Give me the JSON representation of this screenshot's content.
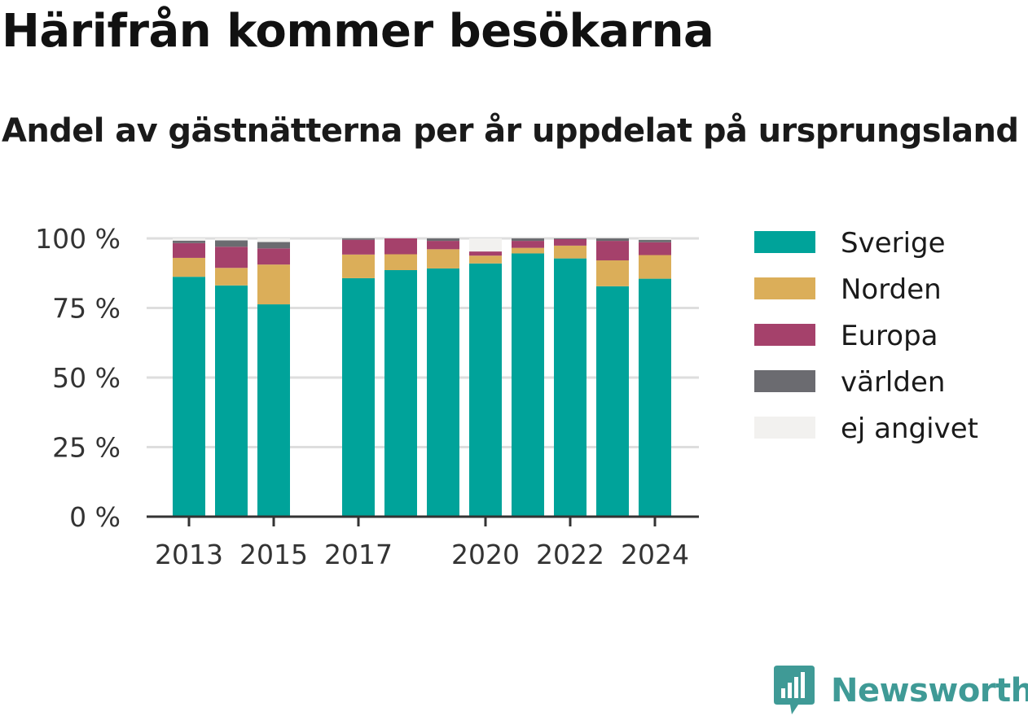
{
  "title": "Härifrån kommer besökarna",
  "subtitle": "Andel av gästnätterna per år uppdelat på ursprungsland",
  "brand": {
    "name": "Newsworthy",
    "color": "#3f9a96",
    "logo_icon": "bar-chart-logo-icon"
  },
  "chart_data": {
    "type": "bar",
    "stacked": true,
    "categories": [
      "2013",
      "2014",
      "2015",
      "2016",
      "2017",
      "2018",
      "2019",
      "2020",
      "2021",
      "2022",
      "2023",
      "2024"
    ],
    "x_tick_labels": [
      "2013",
      "2015",
      "2017",
      "2020",
      "2022",
      "2024"
    ],
    "y_tick_labels": [
      "0 %",
      "25 %",
      "50 %",
      "75 %",
      "100 %"
    ],
    "y_ticks": [
      0,
      25,
      50,
      75,
      100
    ],
    "ylim": [
      0,
      100
    ],
    "grid": true,
    "legend_position": "right",
    "series": [
      {
        "name": "Sverige",
        "color": "#00a39a",
        "values": [
          86.2,
          83.1,
          76.3,
          null,
          85.7,
          88.6,
          89.2,
          91.0,
          94.6,
          92.8,
          82.8,
          85.5
        ]
      },
      {
        "name": "Norden",
        "color": "#dbae59",
        "values": [
          6.8,
          6.3,
          14.3,
          null,
          8.5,
          5.7,
          6.9,
          2.8,
          2.0,
          4.6,
          9.3,
          8.5
        ]
      },
      {
        "name": "Europa",
        "color": "#a5416b",
        "values": [
          5.3,
          7.6,
          5.8,
          null,
          5.3,
          5.7,
          3.0,
          1.5,
          2.5,
          2.3,
          7.0,
          4.6
        ]
      },
      {
        "name": "världen",
        "color": "#6b6b70",
        "values": [
          0.9,
          2.3,
          2.3,
          null,
          0.5,
          0,
          0.9,
          0,
          0.9,
          0.3,
          0.9,
          0.9
        ]
      },
      {
        "name": "ej angivet",
        "color": "#f2f1ef",
        "values": [
          0.8,
          0.7,
          1.3,
          null,
          0,
          0,
          0,
          4.7,
          0,
          0,
          0,
          0.5
        ]
      }
    ]
  }
}
